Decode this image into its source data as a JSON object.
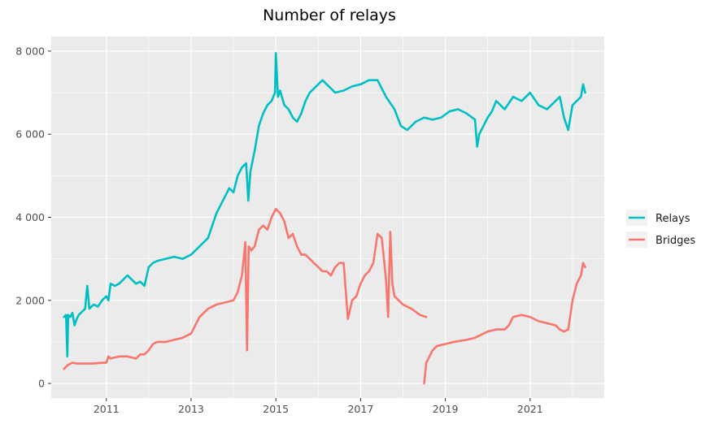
{
  "chart_data": {
    "type": "line",
    "title": "Number of relays",
    "xlabel": "",
    "ylabel": "",
    "xlim": [
      2009.7,
      2022.75
    ],
    "ylim": [
      -350,
      8350
    ],
    "x_ticks": [
      2011,
      2013,
      2015,
      2017,
      2019,
      2021
    ],
    "x_tick_labels": [
      "2011",
      "2013",
      "2015",
      "2017",
      "2019",
      "2021"
    ],
    "y_ticks": [
      0,
      2000,
      4000,
      6000,
      8000
    ],
    "y_tick_labels": [
      "0",
      "2 000",
      "4 000",
      "6 000",
      "8 000"
    ],
    "grid": true,
    "legend_position": "right",
    "series": [
      {
        "name": "Relays",
        "color": "#00BFC4",
        "x": [
          2010.0,
          2010.05,
          2010.08,
          2010.1,
          2010.15,
          2010.2,
          2010.25,
          2010.3,
          2010.35,
          2010.4,
          2010.5,
          2010.55,
          2010.6,
          2010.7,
          2010.8,
          2010.9,
          2011.0,
          2011.05,
          2011.1,
          2011.2,
          2011.3,
          2011.4,
          2011.5,
          2011.6,
          2011.7,
          2011.8,
          2011.9,
          2012.0,
          2012.1,
          2012.2,
          2012.4,
          2012.6,
          2012.8,
          2012.9,
          2013.0,
          2013.2,
          2013.4,
          2013.5,
          2013.6,
          2013.7,
          2013.8,
          2013.9,
          2014.0,
          2014.1,
          2014.2,
          2014.3,
          2014.35,
          2014.4,
          2014.5,
          2014.6,
          2014.7,
          2014.8,
          2014.9,
          2014.98,
          2015.0,
          2015.05,
          2015.1,
          2015.2,
          2015.3,
          2015.4,
          2015.5,
          2015.6,
          2015.7,
          2015.8,
          2015.9,
          2016.0,
          2016.1,
          2016.2,
          2016.4,
          2016.6,
          2016.8,
          2017.0,
          2017.2,
          2017.4,
          2017.6,
          2017.8,
          2017.95,
          2018.1,
          2018.3,
          2018.5,
          2018.7,
          2018.9,
          2019.1,
          2019.3,
          2019.5,
          2019.7,
          2019.75,
          2019.8,
          2019.9,
          2020.0,
          2020.1,
          2020.2,
          2020.4,
          2020.6,
          2020.8,
          2021.0,
          2021.2,
          2021.4,
          2021.6,
          2021.7,
          2021.8,
          2021.9,
          2022.0,
          2022.1,
          2022.2,
          2022.25,
          2022.3
        ],
        "y": [
          1600,
          1650,
          650,
          1650,
          1600,
          1700,
          1400,
          1550,
          1650,
          1700,
          1800,
          2350,
          1800,
          1900,
          1850,
          2000,
          2100,
          2000,
          2400,
          2350,
          2400,
          2500,
          2600,
          2500,
          2400,
          2450,
          2350,
          2800,
          2900,
          2950,
          3000,
          3050,
          3000,
          3050,
          3100,
          3300,
          3500,
          3800,
          4100,
          4300,
          4500,
          4700,
          4600,
          5000,
          5200,
          5300,
          4400,
          5100,
          5600,
          6200,
          6500,
          6700,
          6800,
          7000,
          7950,
          6900,
          7050,
          6700,
          6600,
          6400,
          6300,
          6500,
          6800,
          7000,
          7100,
          7200,
          7300,
          7200,
          7000,
          7050,
          7150,
          7200,
          7300,
          7300,
          6900,
          6600,
          6200,
          6100,
          6300,
          6400,
          6350,
          6400,
          6550,
          6600,
          6500,
          6350,
          5700,
          6000,
          6200,
          6400,
          6550,
          6800,
          6600,
          6900,
          6800,
          7000,
          6700,
          6600,
          6800,
          6900,
          6400,
          6100,
          6700,
          6800,
          6900,
          7200,
          7000
        ]
      },
      {
        "name": "Bridges",
        "color": "#F8766D",
        "x": [
          2010.0,
          2010.1,
          2010.2,
          2010.3,
          2010.5,
          2010.7,
          2010.9,
          2011.0,
          2011.05,
          2011.1,
          2011.3,
          2011.5,
          2011.7,
          2011.8,
          2011.9,
          2012.0,
          2012.1,
          2012.2,
          2012.4,
          2012.6,
          2012.8,
          2013.0,
          2013.2,
          2013.4,
          2013.6,
          2013.8,
          2014.0,
          2014.1,
          2014.2,
          2014.28,
          2014.32,
          2014.36,
          2014.42,
          2014.5,
          2014.6,
          2014.7,
          2014.8,
          2014.9,
          2015.0,
          2015.1,
          2015.2,
          2015.3,
          2015.4,
          2015.5,
          2015.6,
          2015.7,
          2015.8,
          2015.9,
          2016.0,
          2016.1,
          2016.2,
          2016.3,
          2016.4,
          2016.5,
          2016.6,
          2016.7,
          2016.8,
          2016.9,
          2017.0,
          2017.1,
          2017.2,
          2017.3,
          2017.4,
          2017.5,
          2017.6,
          2017.65,
          2017.7,
          2017.75,
          2017.8,
          2017.9,
          2018.0,
          2018.2,
          2018.4,
          2018.55
        ],
        "y": [
          350,
          450,
          500,
          480,
          480,
          480,
          500,
          500,
          650,
          600,
          650,
          650,
          600,
          700,
          700,
          800,
          950,
          1000,
          1000,
          1050,
          1100,
          1200,
          1600,
          1800,
          1900,
          1950,
          2000,
          2200,
          2600,
          3400,
          800,
          3300,
          3200,
          3300,
          3700,
          3800,
          3700,
          4000,
          4200,
          4100,
          3900,
          3500,
          3600,
          3300,
          3100,
          3100,
          3000,
          2900,
          2800,
          2700,
          2700,
          2600,
          2800,
          2900,
          2900,
          1550,
          2000,
          2100,
          2400,
          2600,
          2700,
          2900,
          3600,
          3500,
          2500,
          1600,
          3650,
          2400,
          2100,
          2000,
          1900,
          1800,
          1650,
          1600
        ]
      },
      {
        "name": "",
        "color": "#F8766D",
        "x": [
          2018.5,
          2018.55,
          2018.6,
          2018.7,
          2018.8,
          2019.0,
          2019.2,
          2019.5,
          2019.7,
          2019.9,
          2020.0,
          2020.2,
          2020.4,
          2020.5,
          2020.6,
          2020.8,
          2021.0,
          2021.2,
          2021.4,
          2021.6,
          2021.7,
          2021.8,
          2021.9,
          2022.0,
          2022.1,
          2022.2,
          2022.25,
          2022.3
        ],
        "y": [
          0,
          500,
          600,
          800,
          900,
          950,
          1000,
          1050,
          1100,
          1200,
          1250,
          1300,
          1300,
          1400,
          1600,
          1650,
          1600,
          1500,
          1450,
          1400,
          1300,
          1250,
          1300,
          2000,
          2400,
          2600,
          2900,
          2800
        ]
      }
    ]
  }
}
